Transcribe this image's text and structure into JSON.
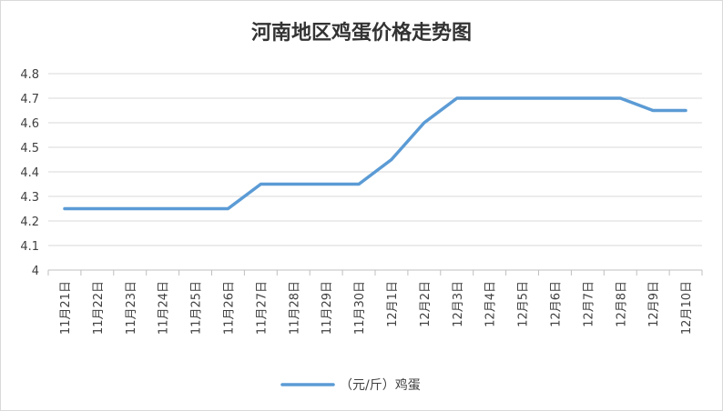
{
  "chart_data": {
    "type": "line",
    "title": "河南地区鸡蛋价格走势图",
    "xlabel": "",
    "ylabel": "",
    "categories": [
      "11月21日",
      "11月22日",
      "11月23日",
      "11月24日",
      "11月25日",
      "11月26日",
      "11月27日",
      "11月28日",
      "11月29日",
      "11月30日",
      "12月1日",
      "12月2日",
      "12月3日",
      "12月4日",
      "12月5日",
      "12月6日",
      "12月7日",
      "12月8日",
      "12月9日",
      "12月10日"
    ],
    "series": [
      {
        "name": "（元/斤）鸡蛋",
        "color": "#5b9bd5",
        "values": [
          4.25,
          4.25,
          4.25,
          4.25,
          4.25,
          4.25,
          4.35,
          4.35,
          4.35,
          4.35,
          4.45,
          4.6,
          4.7,
          4.7,
          4.7,
          4.7,
          4.7,
          4.7,
          4.65,
          4.65
        ]
      }
    ],
    "ylim": [
      4,
      4.8
    ],
    "yticks": [
      "4.8",
      "4.7",
      "4.6",
      "4.5",
      "4.4",
      "4.3",
      "4.2",
      "4.1",
      "4"
    ],
    "ytick_values": [
      4.8,
      4.7,
      4.6,
      4.5,
      4.4,
      4.3,
      4.2,
      4.1,
      4.0
    ],
    "grid": true,
    "legend_position": "bottom"
  }
}
